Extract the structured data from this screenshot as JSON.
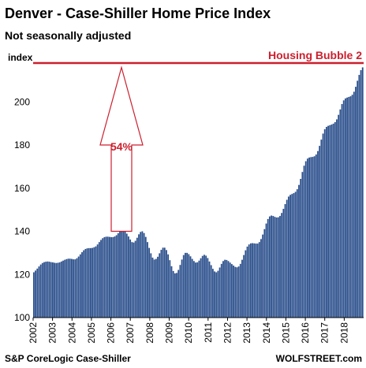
{
  "chart_data": {
    "type": "bar",
    "title": "Denver  - Case-Shiller Home Price Index",
    "subtitle": "Not seasonally adjusted",
    "ylabel": "index",
    "ylim": [
      100,
      218
    ],
    "yticks": [
      100,
      120,
      140,
      160,
      180,
      200
    ],
    "grid": false,
    "x_start_year": 2002,
    "x_end_year": 2018,
    "xticks": [
      "2002",
      "2003",
      "2004",
      "2005",
      "2006",
      "2007",
      "2008",
      "2009",
      "2010",
      "2011",
      "2012",
      "2013",
      "2014",
      "2015",
      "2016",
      "2017",
      "2018"
    ],
    "bar_color": "#2b4f8c",
    "series": [
      {
        "values": [
          121.0,
          121.8,
          122.7,
          123.7,
          124.6,
          125.3,
          125.7,
          125.9,
          126.0,
          125.9,
          125.7,
          125.6,
          125.4,
          125.3,
          125.4,
          125.6,
          126.0,
          126.4,
          126.8,
          127.1,
          127.3,
          127.3,
          127.2,
          127.0,
          127.0,
          127.5,
          128.3,
          129.3,
          130.3,
          131.2,
          131.8,
          132.1,
          132.2,
          132.2,
          132.3,
          132.6,
          133.0,
          133.9,
          135.0,
          136.0,
          136.8,
          137.3,
          137.5,
          137.5,
          137.4,
          137.3,
          137.3,
          137.6,
          138.2,
          139.1,
          140.0,
          140.5,
          140.5,
          139.9,
          138.9,
          137.6,
          136.2,
          135.0,
          134.8,
          135.6,
          137.0,
          138.6,
          139.7,
          140.0,
          139.2,
          137.4,
          135.0,
          132.3,
          129.8,
          127.8,
          126.9,
          127.2,
          128.2,
          129.8,
          131.4,
          132.4,
          132.4,
          131.3,
          129.3,
          126.6,
          123.8,
          121.6,
          120.5,
          120.7,
          122.1,
          124.4,
          126.9,
          129.0,
          130.0,
          130.0,
          129.4,
          128.4,
          127.2,
          126.2,
          125.5,
          125.6,
          126.4,
          127.5,
          128.6,
          129.1,
          128.7,
          127.6,
          126.0,
          124.3,
          122.6,
          121.4,
          121.0,
          121.7,
          123.2,
          124.9,
          126.2,
          126.8,
          126.7,
          126.2,
          125.5,
          124.8,
          124.1,
          123.5,
          123.3,
          123.7,
          124.9,
          126.8,
          129.0,
          131.2,
          132.9,
          133.9,
          134.4,
          134.5,
          134.4,
          134.3,
          134.3,
          135.0,
          136.4,
          138.5,
          141.0,
          143.6,
          145.7,
          146.9,
          147.3,
          147.1,
          146.7,
          146.4,
          146.5,
          147.1,
          148.5,
          150.4,
          152.6,
          154.6,
          156.1,
          156.9,
          157.3,
          157.7,
          158.3,
          159.5,
          161.5,
          164.3,
          167.5,
          170.4,
          172.5,
          173.7,
          174.2,
          174.4,
          174.5,
          174.8,
          175.6,
          177.2,
          179.6,
          182.5,
          185.3,
          187.3,
          188.4,
          188.9,
          189.2,
          189.5,
          189.9,
          190.6,
          191.9,
          194.0,
          196.5,
          199.0,
          200.7,
          201.6,
          202.0,
          202.3,
          202.6,
          203.3,
          204.7,
          207.0,
          209.8,
          212.5,
          214.7,
          216.0
        ]
      }
    ],
    "annotations": {
      "bubble_label": "Housing Bubble 2",
      "bubble_level": 218,
      "bubble_color": "#cc1f2e",
      "arrow_label": "54%",
      "arrow_from": 140,
      "arrow_to": 216
    },
    "source": "S&P CoreLogic Case-Shiller",
    "credit": "WOLFSTREET.com"
  }
}
